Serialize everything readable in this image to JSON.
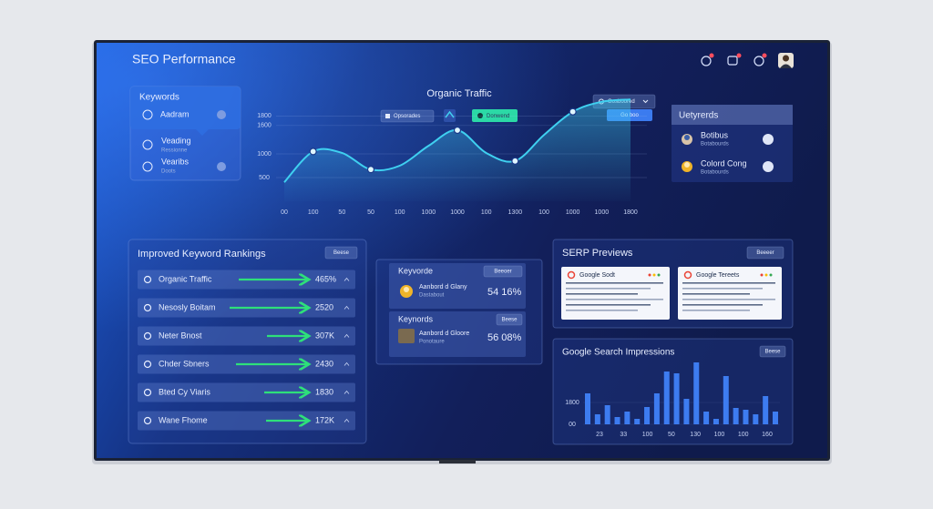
{
  "header": {
    "title": "SEO Performance"
  },
  "keywords_panel": {
    "title": "Keywords",
    "items": [
      {
        "name": "Aadram"
      },
      {
        "name": "Veading",
        "sub": "Ressionne"
      },
      {
        "name": "Vearibs",
        "sub": "Doots"
      }
    ]
  },
  "traffic_chart": {
    "type": "line",
    "title": "Organic Traffic",
    "buttons": [
      "Opsorades",
      "Donwend",
      "Gosboored",
      "Go boo"
    ],
    "categories": [
      "00",
      "100",
      "50",
      "50",
      "100",
      "1000",
      "1000",
      "100",
      "1300",
      "100",
      "1000",
      "1000",
      "1800"
    ],
    "values": [
      400,
      1050,
      1020,
      670,
      750,
      1170,
      1500,
      1020,
      850,
      1400,
      1890,
      2100,
      2150
    ],
    "ylim": [
      0,
      2200
    ],
    "yticks": [
      500,
      1000,
      1600,
      1800
    ],
    "color": "#3fd0f0",
    "grid": true
  },
  "users_panel": {
    "title": "Uetyrerds",
    "items": [
      {
        "name": "Botibus",
        "sub": "Botabourds"
      },
      {
        "name": "Colord Cong",
        "sub": "Botabourds"
      }
    ]
  },
  "rankings_panel": {
    "title": "Improved Keyword Rankings",
    "button": "Beese",
    "rows": [
      {
        "name": "Organic Traffic",
        "value": "465%"
      },
      {
        "name": "Nesosly Boitam",
        "value": "2520"
      },
      {
        "name": "Neter Bnost",
        "value": "307K"
      },
      {
        "name": "Chder Sbners",
        "value": "2430"
      },
      {
        "name": "Bted Cy Viaris",
        "value": "1830"
      },
      {
        "name": "Wane Fhome",
        "value": "172K"
      }
    ]
  },
  "keyword_cards": [
    {
      "title": "Keyvorde",
      "button": "Beeoer",
      "name": "Aanbord d Glany",
      "sub": "Dastabout",
      "value": "54 16%"
    },
    {
      "title": "Keynords",
      "button": "Beese",
      "name": "Aanbord d Gloore",
      "sub": "Ponotaure",
      "value": "56 08%"
    }
  ],
  "serp_panel": {
    "title": "SERP Previews",
    "button": "Beeeer",
    "cards": [
      "Google Sodt",
      "Google Tereets"
    ]
  },
  "impressions_chart": {
    "type": "bar",
    "title": "Google Search Impressions",
    "button": "Beese",
    "values": [
      2550,
      825,
      1575,
      600,
      1050,
      450,
      1425,
      2550,
      4350,
      4200,
      2100,
      5100,
      1050,
      450,
      3975,
      1350,
      1200,
      825,
      2325,
      1050
    ],
    "x_labels": [
      "23",
      "33",
      "100",
      "50",
      "130",
      "100",
      "100",
      "160"
    ],
    "ylim": [
      0,
      5400
    ],
    "yticks": [
      {
        "value": 0,
        "label": "00"
      },
      1800
    ],
    "color": "#3d7cf0"
  }
}
